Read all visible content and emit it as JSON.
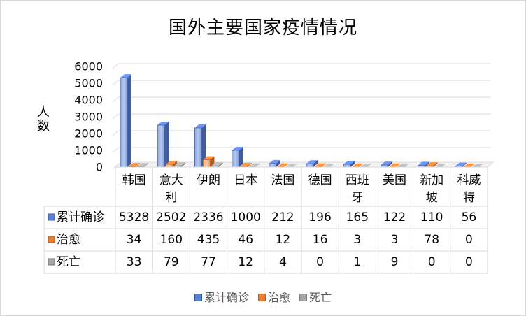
{
  "chart_data": {
    "type": "bar",
    "style": "3d-clustered-column with data table",
    "title": "国外主要国家疫情情况",
    "ylabel": "人数",
    "ylim": [
      0,
      6000
    ],
    "yticks": [
      0,
      1000,
      2000,
      3000,
      4000,
      5000,
      6000
    ],
    "categories": [
      "韩国",
      "意大利",
      "伊朗",
      "日本",
      "法国",
      "德国",
      "西班牙",
      "美国",
      "新加坡",
      "科威特"
    ],
    "series": [
      {
        "name": "累计确诊",
        "color": "#5b7fd6",
        "values": [
          5328,
          2502,
          2336,
          1000,
          212,
          196,
          165,
          122,
          110,
          56
        ]
      },
      {
        "name": "治愈",
        "color": "#ed7d31",
        "values": [
          34,
          160,
          435,
          46,
          12,
          16,
          3,
          3,
          78,
          0
        ]
      },
      {
        "name": "死亡",
        "color": "#a5a5a5",
        "values": [
          33,
          79,
          77,
          12,
          4,
          0,
          1,
          9,
          0,
          0
        ]
      }
    ],
    "grid": true,
    "legend_position": "bottom"
  }
}
